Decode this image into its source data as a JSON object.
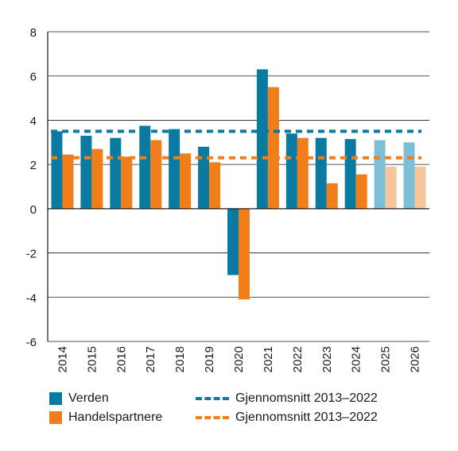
{
  "chart_data": {
    "type": "bar",
    "categories": [
      "2014",
      "2015",
      "2016",
      "2017",
      "2018",
      "2019",
      "2020",
      "2021",
      "2022",
      "2023",
      "2024",
      "2025",
      "2026"
    ],
    "series": [
      {
        "name": "Verden",
        "color": "#0a7aa0",
        "forecast_color": "#7dbfd6",
        "values": [
          3.5,
          3.3,
          3.2,
          3.75,
          3.6,
          2.8,
          -3.0,
          6.3,
          3.4,
          3.2,
          3.15,
          3.1,
          3.0
        ]
      },
      {
        "name": "Handelspartnere",
        "color": "#f07e1a",
        "forecast_color": "#f8c49a",
        "values": [
          2.45,
          2.7,
          2.35,
          3.1,
          2.5,
          2.1,
          -4.1,
          5.5,
          3.2,
          1.15,
          1.55,
          1.9,
          1.9
        ]
      }
    ],
    "forecast_from_index": 11,
    "reference_lines": [
      {
        "name": "Gjennomsnitt 2013–2022",
        "value": 3.5,
        "color": "#0a7aa0"
      },
      {
        "name": "Gjennomsnitt 2013–2022",
        "value": 2.3,
        "color": "#f07e1a"
      }
    ],
    "ylim": [
      -6,
      8
    ],
    "yticks": [
      -6,
      -4,
      -2,
      0,
      2,
      4,
      6,
      8
    ],
    "grid": true,
    "legend_position": "bottom",
    "title": "",
    "xlabel": "",
    "ylabel": ""
  }
}
